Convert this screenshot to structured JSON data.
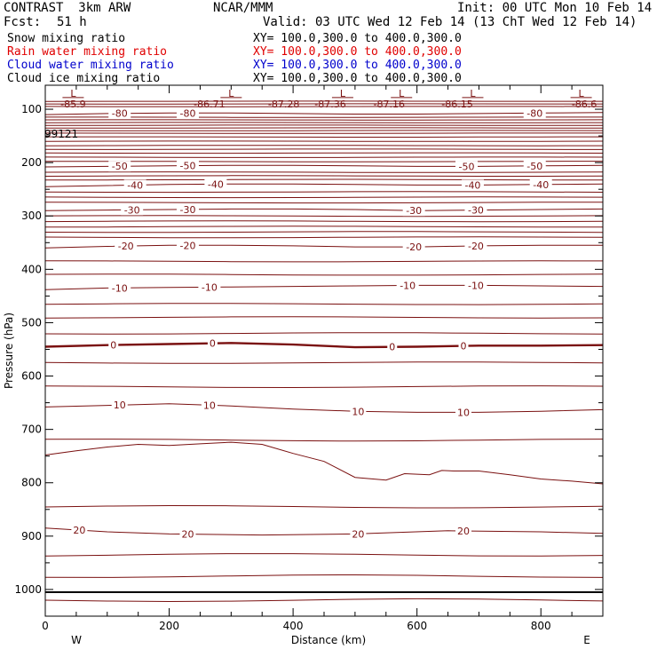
{
  "header": {
    "model": "CONTRAST  3km ARW",
    "center": "NCAR/MMM",
    "init": "Init: 00 UTC Mon 10 Feb 14",
    "fcst_label": "Fcst:",
    "fcst_value": "51 h",
    "valid": "Valid: 03 UTC Wed 12 Feb 14 (13 ChT Wed 12 Feb 14)"
  },
  "legend": [
    {
      "label": "Snow mixing ratio",
      "xy": "XY= 100.0,300.0 to 400.0,300.0",
      "color": "#000000"
    },
    {
      "label": "Rain water mixing ratio",
      "xy": "XY= 100.0,300.0 to 400.0,300.0",
      "color": "#e00000"
    },
    {
      "label": "Cloud water mixing ratio",
      "xy": "XY= 100.0,300.0 to 400.0,300.0",
      "color": "#0000cc"
    },
    {
      "label": "Cloud ice mixing ratio",
      "xy": "XY= 100.0,300.0 to 400.0,300.0",
      "color": "#000000"
    }
  ],
  "chart_data": {
    "type": "line",
    "xlabel": "Distance (km)",
    "ylabel": "Pressure (hPa)",
    "xlim": [
      0,
      900
    ],
    "ylim": [
      1050,
      55
    ],
    "x_ticks": [
      "0",
      "200",
      "400",
      "600",
      "800"
    ],
    "y_ticks": [
      "100",
      "200",
      "300",
      "400",
      "500",
      "600",
      "700",
      "800",
      "900",
      "1000"
    ],
    "x_end_labels": {
      "left": "W",
      "right": "E"
    },
    "stray_label": "99121",
    "contour_color": "#7a1010",
    "isotherms": [
      {
        "value": 20,
        "label": "20",
        "points": [
          [
            0,
            885
          ],
          [
            100,
            892
          ],
          [
            200,
            896
          ],
          [
            350,
            898
          ],
          [
            500,
            896
          ],
          [
            650,
            890
          ],
          [
            800,
            892
          ],
          [
            900,
            895
          ]
        ],
        "labels_at": [
          55,
          230,
          505,
          675
        ]
      },
      {
        "value": 10,
        "label": "10",
        "points": [
          [
            0,
            658
          ],
          [
            100,
            655
          ],
          [
            200,
            652
          ],
          [
            300,
            656
          ],
          [
            400,
            662
          ],
          [
            500,
            666
          ],
          [
            600,
            668
          ],
          [
            700,
            668
          ],
          [
            800,
            666
          ],
          [
            900,
            663
          ]
        ],
        "labels_at": [
          120,
          265,
          505,
          675
        ]
      },
      {
        "value": 0,
        "label": "0",
        "bold": true,
        "points": [
          [
            0,
            545
          ],
          [
            100,
            542
          ],
          [
            200,
            540
          ],
          [
            300,
            538
          ],
          [
            400,
            541
          ],
          [
            500,
            546
          ],
          [
            600,
            545
          ],
          [
            700,
            543
          ],
          [
            800,
            543
          ],
          [
            900,
            542
          ]
        ],
        "labels_at": [
          110,
          270,
          560,
          675
        ]
      },
      {
        "value": -10,
        "label": "-10",
        "points": [
          [
            0,
            438
          ],
          [
            100,
            435
          ],
          [
            200,
            434
          ],
          [
            300,
            433
          ],
          [
            400,
            432
          ],
          [
            500,
            431
          ],
          [
            600,
            430
          ],
          [
            700,
            430
          ],
          [
            800,
            431
          ],
          [
            900,
            432
          ]
        ],
        "labels_at": [
          120,
          265,
          585,
          695
        ]
      },
      {
        "value": -20,
        "label": "-20",
        "points": [
          [
            0,
            360
          ],
          [
            100,
            357
          ],
          [
            200,
            355
          ],
          [
            300,
            355
          ],
          [
            400,
            356
          ],
          [
            500,
            358
          ],
          [
            600,
            358
          ],
          [
            700,
            356
          ],
          [
            800,
            355
          ],
          [
            900,
            355
          ]
        ],
        "labels_at": [
          130,
          230,
          595,
          695
        ]
      },
      {
        "value": -30,
        "label": "-30",
        "points": [
          [
            0,
            290
          ],
          [
            100,
            289
          ],
          [
            200,
            288
          ],
          [
            300,
            287
          ],
          [
            400,
            287
          ],
          [
            500,
            288
          ],
          [
            600,
            290
          ],
          [
            700,
            289
          ],
          [
            800,
            288
          ],
          [
            900,
            287
          ]
        ],
        "labels_at": [
          140,
          230,
          595,
          695
        ]
      },
      {
        "value": -40,
        "label": "-40",
        "points": [
          [
            0,
            245
          ],
          [
            100,
            243
          ],
          [
            200,
            241
          ],
          [
            300,
            240
          ],
          [
            400,
            240
          ],
          [
            500,
            241
          ],
          [
            600,
            242
          ],
          [
            700,
            242
          ],
          [
            800,
            241
          ],
          [
            900,
            240
          ]
        ],
        "labels_at": [
          145,
          275,
          690,
          800
        ]
      },
      {
        "value": -50,
        "label": "-50",
        "points": [
          [
            0,
            208
          ],
          [
            100,
            207
          ],
          [
            200,
            206
          ],
          [
            300,
            205
          ],
          [
            400,
            205
          ],
          [
            500,
            206
          ],
          [
            600,
            207
          ],
          [
            700,
            207
          ],
          [
            800,
            206
          ],
          [
            900,
            205
          ]
        ],
        "labels_at": [
          120,
          230,
          680,
          790
        ]
      },
      {
        "value": -80,
        "label": "-80",
        "points": [
          [
            0,
            110
          ],
          [
            100,
            108
          ],
          [
            200,
            107
          ],
          [
            300,
            107
          ],
          [
            400,
            108
          ],
          [
            500,
            109
          ],
          [
            600,
            109
          ],
          [
            700,
            108
          ],
          [
            800,
            107
          ],
          [
            900,
            106
          ]
        ],
        "labels_at": [
          120,
          230,
          790
        ]
      }
    ],
    "unlabeled_isotherms_hpa": [
      1020,
      975,
      935,
      845,
      720,
      620,
      575,
      520,
      490,
      465,
      410,
      385,
      340,
      330,
      320,
      310,
      300,
      275,
      265,
      255,
      232,
      225,
      218,
      198,
      190,
      182,
      175,
      168,
      160,
      152,
      145,
      140,
      135,
      130,
      125,
      120,
      115,
      95,
      90,
      85
    ],
    "melting_boundary": {
      "points": [
        [
          0,
          748
        ],
        [
          50,
          740
        ],
        [
          100,
          733
        ],
        [
          150,
          728
        ],
        [
          200,
          730
        ],
        [
          250,
          727
        ],
        [
          300,
          724
        ],
        [
          350,
          728
        ],
        [
          400,
          745
        ],
        [
          450,
          760
        ],
        [
          500,
          790
        ],
        [
          550,
          795
        ],
        [
          580,
          783
        ],
        [
          620,
          785
        ],
        [
          640,
          777
        ],
        [
          660,
          778
        ],
        [
          700,
          778
        ],
        [
          750,
          785
        ],
        [
          800,
          793
        ],
        [
          850,
          797
        ],
        [
          900,
          802
        ]
      ]
    },
    "min_labels": [
      {
        "x": 45,
        "value": "-85.9"
      },
      {
        "x": 265,
        "value": "-86.71"
      },
      {
        "x": 385,
        "value": "-87.28"
      },
      {
        "x": 460,
        "value": "-87.36"
      },
      {
        "x": 555,
        "value": "-87.16"
      },
      {
        "x": 665,
        "value": "-86.15"
      },
      {
        "x": 870,
        "value": "-86.6"
      }
    ],
    "low_markers": [
      {
        "x": 45,
        "label": "L"
      },
      {
        "x": 300,
        "label": "L"
      },
      {
        "x": 480,
        "label": "L"
      },
      {
        "x": 575,
        "label": "L"
      },
      {
        "x": 690,
        "label": "L"
      },
      {
        "x": 865,
        "label": "L"
      }
    ]
  }
}
